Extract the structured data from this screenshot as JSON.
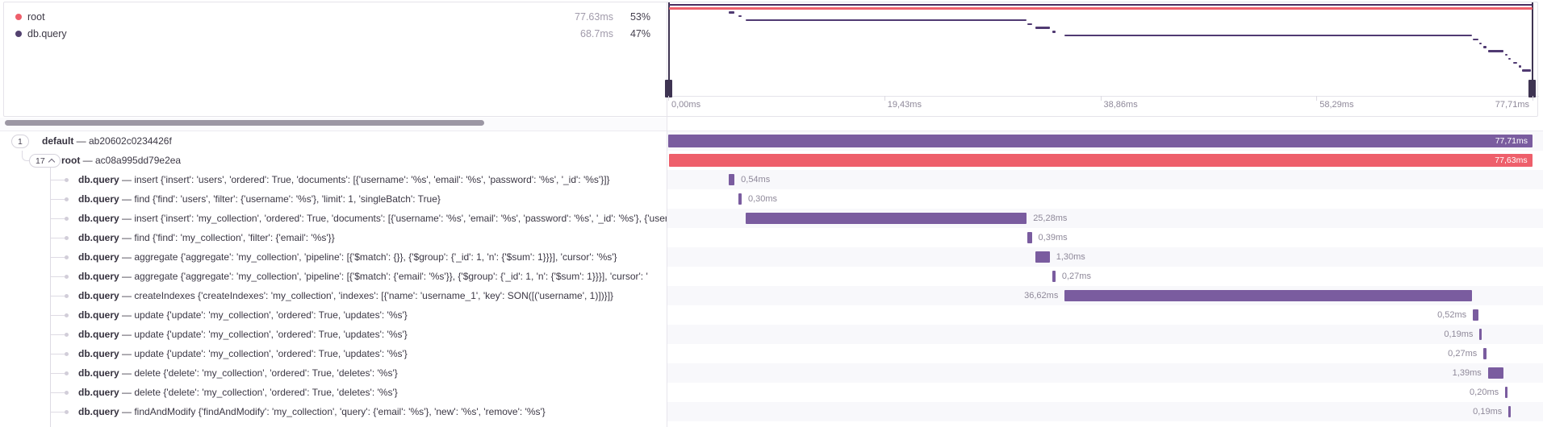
{
  "legend": {
    "items": [
      {
        "label": "root",
        "color": "#ee5f6b",
        "duration": "77.63ms",
        "percent": "53%"
      },
      {
        "label": "db.query",
        "color": "#53416f",
        "duration": "68.7ms",
        "percent": "47%"
      }
    ]
  },
  "minimap": {
    "total_ms": 77.71,
    "row_colors": {
      "trace": "#4a2d60",
      "root": "#ee5f6b",
      "query": "#503a72"
    },
    "extra_spans": [
      {
        "start_ms": 76.0,
        "dur_ms": 0.3
      },
      {
        "start_ms": 76.45,
        "dur_ms": 0.25
      },
      {
        "start_ms": 76.75,
        "dur_ms": 0.8
      }
    ]
  },
  "axis": {
    "ticks": [
      "0,00ms",
      "19,43ms",
      "38,86ms",
      "58,29ms",
      "77,71ms"
    ]
  },
  "scrollbar": {
    "present": true
  },
  "tree": {
    "rows": [
      {
        "badge": "1",
        "chevron": false,
        "name": "default",
        "desc": "ab20602c0234426f",
        "bar": {
          "start_ms": 0,
          "dur_ms": 77.71,
          "label": "77,71ms",
          "color": "#7a5c9f",
          "label_pos": "inside"
        }
      },
      {
        "badge": "17",
        "chevron": true,
        "name": "root",
        "desc": "ac08a995dd79e2ea",
        "bar": {
          "start_ms": 0.05,
          "dur_ms": 77.63,
          "label": "77,63ms",
          "color": "#ee5f6b",
          "label_pos": "inside"
        }
      },
      {
        "name": "db.query",
        "desc": "insert {'insert': 'users', 'ordered': True, 'documents': [{'username': '%s', 'email': '%s', 'password': '%s', '_id': '%s'}]}",
        "bar": {
          "start_ms": 5.42,
          "dur_ms": 0.54,
          "label": "0,54ms",
          "color": "#7a5c9f",
          "label_pos": "right"
        }
      },
      {
        "name": "db.query",
        "desc": "find {'find': 'users', 'filter': {'username': '%s'}, 'limit': 1, 'singleBatch': True}",
        "bar": {
          "start_ms": 6.3,
          "dur_ms": 0.3,
          "label": "0,30ms",
          "color": "#7a5c9f",
          "label_pos": "right"
        }
      },
      {
        "name": "db.query",
        "desc": "insert {'insert': 'my_collection', 'ordered': True, 'documents': [{'username': '%s', 'email': '%s', 'password': '%s', '_id': '%s'}, {'username': '%s', 'email': '%s', 'password': '%s'",
        "bar": {
          "start_ms": 6.95,
          "dur_ms": 25.28,
          "label": "25,28ms",
          "color": "#7a5c9f",
          "label_pos": "right"
        }
      },
      {
        "name": "db.query",
        "desc": "find {'find': 'my_collection', 'filter': {'email': '%s'}}",
        "bar": {
          "start_ms": 32.3,
          "dur_ms": 0.39,
          "label": "0,39ms",
          "color": "#7a5c9f",
          "label_pos": "right"
        }
      },
      {
        "name": "db.query",
        "desc": "aggregate {'aggregate': 'my_collection', 'pipeline': [{'$match': {}}, {'$group': {'_id': 1, 'n': {'$sum': 1}}}], 'cursor': '%s'}",
        "bar": {
          "start_ms": 33.0,
          "dur_ms": 1.3,
          "label": "1,30ms",
          "color": "#7a5c9f",
          "label_pos": "right"
        }
      },
      {
        "name": "db.query",
        "desc": "aggregate {'aggregate': 'my_collection', 'pipeline': [{'$match': {'email': '%s'}}, {'$group': {'_id': 1, 'n': {'$sum': 1}}}], 'cursor': '",
        "bar": {
          "start_ms": 34.55,
          "dur_ms": 0.27,
          "label": "0,27ms",
          "color": "#7a5c9f",
          "label_pos": "right"
        }
      },
      {
        "name": "db.query",
        "desc": "createIndexes {'createIndexes': 'my_collection', 'indexes': [{'name': 'username_1', 'key': SON([('username', 1)])}]}",
        "bar": {
          "start_ms": 35.65,
          "dur_ms": 36.62,
          "label": "36,62ms",
          "color": "#7a5c9f",
          "label_pos": "left"
        }
      },
      {
        "name": "db.query",
        "desc": "update {'update': 'my_collection', 'ordered': True, 'updates': '%s'}",
        "bar": {
          "start_ms": 72.35,
          "dur_ms": 0.52,
          "label": "0,52ms",
          "color": "#7a5c9f",
          "label_pos": "left"
        }
      },
      {
        "name": "db.query",
        "desc": "update {'update': 'my_collection', 'ordered': True, 'updates': '%s'}",
        "bar": {
          "start_ms": 72.95,
          "dur_ms": 0.19,
          "label": "0,19ms",
          "color": "#7a5c9f",
          "label_pos": "left"
        }
      },
      {
        "name": "db.query",
        "desc": "update {'update': 'my_collection', 'ordered': True, 'updates': '%s'}",
        "bar": {
          "start_ms": 73.3,
          "dur_ms": 0.27,
          "label": "0,27ms",
          "color": "#7a5c9f",
          "label_pos": "left"
        }
      },
      {
        "name": "db.query",
        "desc": "delete {'delete': 'my_collection', 'ordered': True, 'deletes': '%s'}",
        "bar": {
          "start_ms": 73.7,
          "dur_ms": 1.39,
          "label": "1,39ms",
          "color": "#7a5c9f",
          "label_pos": "left"
        }
      },
      {
        "name": "db.query",
        "desc": "delete {'delete': 'my_collection', 'ordered': True, 'deletes': '%s'}",
        "bar": {
          "start_ms": 75.25,
          "dur_ms": 0.2,
          "label": "0,20ms",
          "color": "#7a5c9f",
          "label_pos": "left"
        }
      },
      {
        "name": "db.query",
        "desc": "findAndModify {'findAndModify': 'my_collection', 'query': {'email': '%s'}, 'new': '%s', 'remove': '%s'}",
        "bar": {
          "start_ms": 75.55,
          "dur_ms": 0.19,
          "label": "0,19ms",
          "color": "#7a5c9f",
          "label_pos": "left"
        }
      }
    ]
  }
}
